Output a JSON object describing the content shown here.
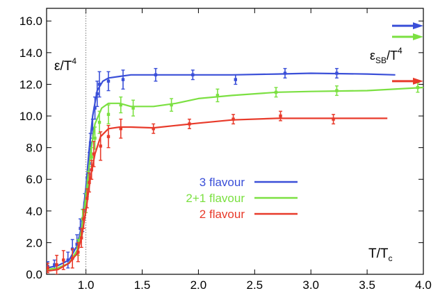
{
  "chart_data": {
    "type": "line",
    "title": "",
    "xlabel": "T/T",
    "xlabel_sub": "c",
    "ylabel": "ε/T",
    "ylabel_sup": "4",
    "sb_label": "ε",
    "sb_label_sub": "SB",
    "sb_label_tail": "/T",
    "sb_label_sup": "4",
    "xlim": [
      0.65,
      4.0
    ],
    "ylim": [
      0.0,
      16.8
    ],
    "x_ticks": [
      1.0,
      1.5,
      2.0,
      2.5,
      3.0,
      3.5,
      4.0
    ],
    "x_tick_labels": [
      "1.0",
      "1.5",
      "2.0",
      "2.5",
      "3.0",
      "3.5",
      "4.0"
    ],
    "y_ticks": [
      0,
      2,
      4,
      6,
      8,
      10,
      12,
      14,
      16
    ],
    "y_tick_labels": [
      "0.0",
      "2.0",
      "4.0",
      "6.0",
      "8.0",
      "10.0",
      "12.0",
      "14.0",
      "16.0"
    ],
    "tc_line_x": 1.0,
    "legend_position": "center",
    "series": [
      {
        "name": "3 flavour",
        "color": "#3a4fd8",
        "sb_limit": 15.7,
        "curve": [
          [
            0.65,
            0.4
          ],
          [
            0.75,
            0.55
          ],
          [
            0.85,
            0.9
          ],
          [
            0.92,
            1.8
          ],
          [
            0.96,
            3.0
          ],
          [
            1.0,
            5.5
          ],
          [
            1.03,
            8.0
          ],
          [
            1.06,
            10.0
          ],
          [
            1.1,
            11.6
          ],
          [
            1.15,
            12.2
          ],
          [
            1.2,
            12.4
          ],
          [
            1.3,
            12.5
          ],
          [
            1.4,
            12.6
          ],
          [
            1.6,
            12.6
          ],
          [
            1.8,
            12.6
          ],
          [
            2.0,
            12.6
          ],
          [
            2.3,
            12.6
          ],
          [
            2.7,
            12.65
          ],
          [
            3.0,
            12.7
          ],
          [
            3.5,
            12.65
          ],
          [
            3.75,
            12.6
          ]
        ],
        "points": [
          [
            0.66,
            0.5,
            0.3
          ],
          [
            0.72,
            0.6,
            0.3
          ],
          [
            0.84,
            0.9,
            0.5
          ],
          [
            0.88,
            1.6,
            0.6
          ],
          [
            0.92,
            1.9,
            0.6
          ],
          [
            0.95,
            2.9,
            0.6
          ],
          [
            0.97,
            3.4,
            0.7
          ],
          [
            0.99,
            4.5,
            0.6
          ],
          [
            1.01,
            5.5,
            0.6
          ],
          [
            1.03,
            7.0,
            0.7
          ],
          [
            1.04,
            8.3,
            0.6
          ],
          [
            1.06,
            9.2,
            0.6
          ],
          [
            1.08,
            10.5,
            0.7
          ],
          [
            1.1,
            11.4,
            0.8
          ],
          [
            1.12,
            12.0,
            0.8
          ],
          [
            1.2,
            12.2,
            0.6
          ],
          [
            1.33,
            12.3,
            0.6
          ],
          [
            1.62,
            12.6,
            0.4
          ],
          [
            1.95,
            12.6,
            0.3
          ],
          [
            2.33,
            12.3,
            0.3
          ],
          [
            2.77,
            12.7,
            0.3
          ],
          [
            3.23,
            12.7,
            0.3
          ]
        ]
      },
      {
        "name": "2+1 flavour",
        "color": "#7be041",
        "sb_limit": 15.0,
        "curve": [
          [
            0.65,
            0.3
          ],
          [
            0.75,
            0.4
          ],
          [
            0.85,
            0.7
          ],
          [
            0.92,
            1.5
          ],
          [
            0.96,
            2.8
          ],
          [
            1.0,
            5.0
          ],
          [
            1.04,
            7.6
          ],
          [
            1.08,
            9.5
          ],
          [
            1.14,
            10.5
          ],
          [
            1.2,
            10.8
          ],
          [
            1.3,
            10.8
          ],
          [
            1.4,
            10.6
          ],
          [
            1.6,
            10.6
          ],
          [
            1.8,
            10.8
          ],
          [
            2.0,
            11.1
          ],
          [
            2.3,
            11.3
          ],
          [
            2.7,
            11.5
          ],
          [
            3.0,
            11.55
          ],
          [
            3.5,
            11.6
          ],
          [
            4.0,
            11.8
          ]
        ],
        "points": [
          [
            0.93,
            1.7,
            0.5
          ],
          [
            0.97,
            3.5,
            0.6
          ],
          [
            1.0,
            4.5,
            0.6
          ],
          [
            1.02,
            5.9,
            0.6
          ],
          [
            1.05,
            7.4,
            0.6
          ],
          [
            1.08,
            8.6,
            0.7
          ],
          [
            1.12,
            9.6,
            0.7
          ],
          [
            1.2,
            10.1,
            0.6
          ],
          [
            1.31,
            10.7,
            0.5
          ],
          [
            1.42,
            10.5,
            0.5
          ],
          [
            1.76,
            10.7,
            0.4
          ],
          [
            2.17,
            11.3,
            0.4
          ],
          [
            2.69,
            11.5,
            0.3
          ],
          [
            3.23,
            11.6,
            0.3
          ],
          [
            3.95,
            11.8,
            0.3
          ]
        ]
      },
      {
        "name": "2 flavour",
        "color": "#e83a2a",
        "sb_limit": 12.2,
        "curve": [
          [
            0.65,
            0.2
          ],
          [
            0.75,
            0.3
          ],
          [
            0.85,
            0.7
          ],
          [
            0.92,
            1.3
          ],
          [
            0.96,
            2.3
          ],
          [
            1.0,
            4.0
          ],
          [
            1.04,
            6.1
          ],
          [
            1.08,
            7.6
          ],
          [
            1.13,
            8.7
          ],
          [
            1.2,
            9.2
          ],
          [
            1.3,
            9.3
          ],
          [
            1.4,
            9.3
          ],
          [
            1.6,
            9.25
          ],
          [
            1.8,
            9.4
          ],
          [
            2.0,
            9.55
          ],
          [
            2.3,
            9.75
          ],
          [
            2.7,
            9.85
          ],
          [
            3.0,
            9.85
          ],
          [
            3.5,
            9.85
          ],
          [
            3.68,
            9.85
          ]
        ],
        "points": [
          [
            0.66,
            0.4,
            0.3
          ],
          [
            0.74,
            0.6,
            0.6
          ],
          [
            0.8,
            0.9,
            0.6
          ],
          [
            0.88,
            1.0,
            0.6
          ],
          [
            0.93,
            1.4,
            0.6
          ],
          [
            0.96,
            2.3,
            0.6
          ],
          [
            0.98,
            3.5,
            0.6
          ],
          [
            1.01,
            4.8,
            0.6
          ],
          [
            1.03,
            5.8,
            0.6
          ],
          [
            1.05,
            6.6,
            0.6
          ],
          [
            1.07,
            7.6,
            0.8
          ],
          [
            1.13,
            8.1,
            0.9
          ],
          [
            1.2,
            8.7,
            0.7
          ],
          [
            1.31,
            9.2,
            0.6
          ],
          [
            1.6,
            9.2,
            0.3
          ],
          [
            1.92,
            9.5,
            0.3
          ],
          [
            2.31,
            9.8,
            0.3
          ],
          [
            2.73,
            10.0,
            0.3
          ],
          [
            3.2,
            9.8,
            0.3
          ]
        ]
      }
    ]
  }
}
